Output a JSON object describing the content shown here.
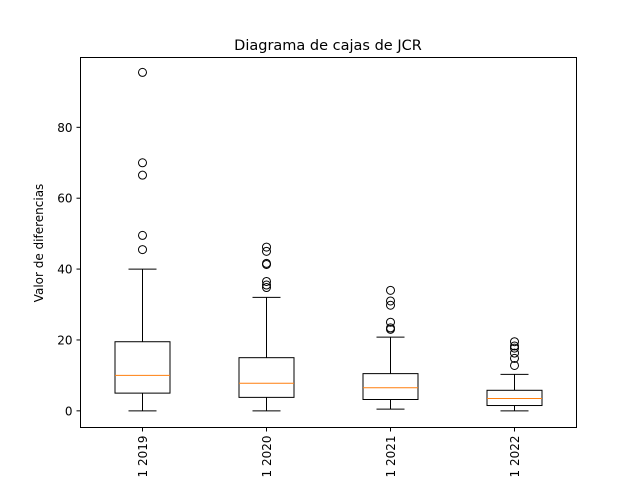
{
  "chart_data": {
    "type": "box",
    "title": "Diagrama de cajas de JCR",
    "xlabel": "",
    "ylabel": "Valor de diferencias",
    "ylim": [
      -4.7,
      99.7
    ],
    "yticks": [
      0,
      20,
      40,
      60,
      80
    ],
    "categories": [
      "2019",
      "2020",
      "2021",
      "2022"
    ],
    "category_labels_cut_off": [
      "1 2019",
      "1 2020",
      "1 2021",
      "1 2022"
    ],
    "boxes": [
      {
        "label": "2019",
        "whislo": 0.0,
        "q1": 5.0,
        "med": 10.0,
        "q3": 19.5,
        "whishi": 40.0,
        "fliers": [
          45.5,
          49.5,
          66.5,
          70.0,
          95.5
        ]
      },
      {
        "label": "2020",
        "whislo": 0.0,
        "q1": 3.8,
        "med": 7.8,
        "q3": 15.0,
        "whishi": 32.0,
        "fliers": [
          34.8,
          35.5,
          36.5,
          41.3,
          41.6,
          45.0,
          46.2
        ]
      },
      {
        "label": "2021",
        "whislo": 0.5,
        "q1": 3.2,
        "med": 6.5,
        "q3": 10.5,
        "whishi": 20.8,
        "fliers": [
          23.0,
          23.4,
          25.0,
          29.8,
          31.0,
          34.0
        ]
      },
      {
        "label": "2022",
        "whislo": 0.0,
        "q1": 1.5,
        "med": 3.5,
        "q3": 5.8,
        "whishi": 10.3,
        "fliers": [
          12.8,
          14.8,
          16.3,
          17.7,
          18.3,
          19.5
        ]
      }
    ],
    "box_color": "#000000",
    "median_color": "#ff7f0e",
    "grid": false
  }
}
